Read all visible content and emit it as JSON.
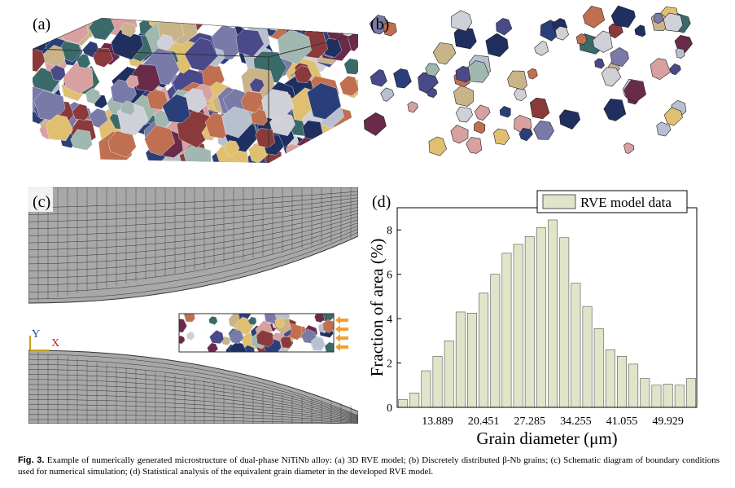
{
  "panels": {
    "a": "(a)",
    "b": "(b)",
    "c": "(c)",
    "d": "(d)"
  },
  "axis_marks": {
    "y": "Y",
    "x": "X"
  },
  "chart_data": {
    "type": "bar",
    "legend": "RVE model data",
    "color": "#e1e4c9",
    "ylabel": "Fraction of area (%)",
    "xlabel": "Grain diameter (μm)",
    "categories": [
      null,
      null,
      null,
      "13.889",
      null,
      null,
      null,
      "20.451",
      null,
      null,
      null,
      "27.285",
      null,
      null,
      null,
      "34.255",
      null,
      null,
      null,
      "41.055",
      null,
      null,
      null,
      "49.929",
      null,
      null
    ],
    "values": [
      0.35,
      0.65,
      1.65,
      2.3,
      3.0,
      4.3,
      4.25,
      5.15,
      6.0,
      6.95,
      7.35,
      7.7,
      8.1,
      8.45,
      7.65,
      5.6,
      4.55,
      3.55,
      2.6,
      2.3,
      1.95,
      1.3,
      1.0,
      1.05,
      1.0,
      1.3
    ],
    "ylim": [
      0,
      9
    ],
    "yticks": [
      0,
      2,
      4,
      6,
      8
    ]
  },
  "caption": {
    "label": "Fig. 3.",
    "text": "Example of numerically generated microstructure of dual-phase NiTiNb alloy: (a) 3D RVE model; (b) Discretely distributed β-Nb grains; (c) Schematic diagram of boundary conditions used for numerical simulation; (d) Statistical analysis of the equivalent grain diameter in the developed RVE model."
  }
}
